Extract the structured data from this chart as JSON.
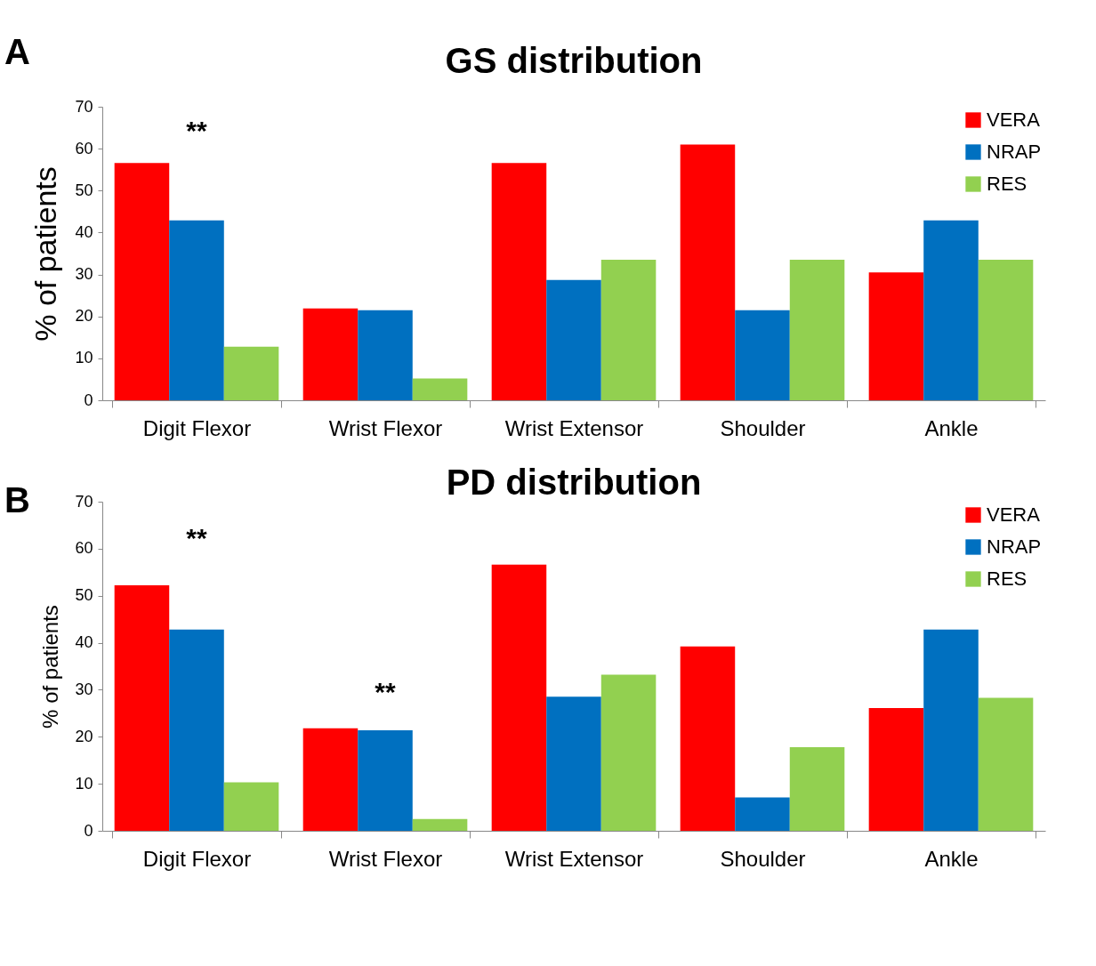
{
  "chart_data": [
    {
      "type": "bar",
      "title": "GS distribution",
      "ylabel": "% of patients",
      "categories": [
        "Digit Flexor",
        "Wrist Flexor",
        "Wrist Extensor",
        "Shoulder",
        "Ankle"
      ],
      "series": [
        {
          "name": "VERA",
          "color": "#ff0000",
          "values": [
            56.6,
            21.9,
            56.6,
            61.0,
            30.5
          ]
        },
        {
          "name": "NRAP",
          "color": "#0070c0",
          "values": [
            42.9,
            21.5,
            28.7,
            21.5,
            42.9
          ]
        },
        {
          "name": "RES",
          "color": "#92d050",
          "values": [
            12.8,
            5.2,
            33.5,
            33.5,
            33.5
          ]
        }
      ],
      "ylim": [
        0,
        70
      ],
      "yticks": [
        0,
        10,
        20,
        30,
        40,
        50,
        60,
        70
      ],
      "grid": false,
      "legend": "top right",
      "annotations": [
        "A",
        "**"
      ]
    },
    {
      "type": "bar",
      "title": "PD distribution",
      "ylabel": "% of patients",
      "categories": [
        "Digit Flexor",
        "Wrist Flexor",
        "Wrist Extensor",
        "Shoulder",
        "Ankle"
      ],
      "series": [
        {
          "name": "VERA",
          "color": "#ff0000",
          "values": [
            52.2,
            21.8,
            56.6,
            39.2,
            26.1
          ]
        },
        {
          "name": "NRAP",
          "color": "#0070c0",
          "values": [
            42.8,
            21.4,
            28.5,
            7.1,
            42.8
          ]
        },
        {
          "name": "RES",
          "color": "#92d050",
          "values": [
            10.3,
            2.5,
            33.2,
            17.8,
            28.3
          ]
        }
      ],
      "ylim": [
        0,
        70
      ],
      "yticks": [
        0,
        10,
        20,
        30,
        40,
        50,
        60,
        70
      ],
      "grid": false,
      "legend": "top right",
      "annotations": [
        "B",
        "**",
        "**"
      ]
    }
  ]
}
